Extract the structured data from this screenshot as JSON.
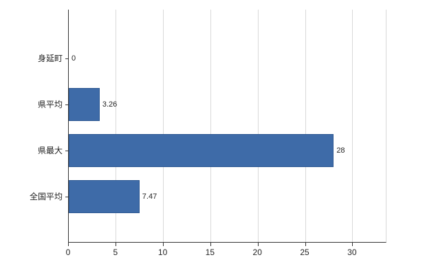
{
  "chart_data": {
    "type": "bar",
    "orientation": "horizontal",
    "title": "",
    "xlabel": "",
    "ylabel": "",
    "categories": [
      "身延町",
      "県平均",
      "県最大",
      "全国平均"
    ],
    "values": [
      0,
      3.26,
      28,
      7.47
    ],
    "value_labels": [
      "0",
      "3.26",
      "28",
      "7.47"
    ],
    "xlim": [
      0,
      33.5
    ],
    "xticks": [
      0,
      5,
      10,
      15,
      20,
      25,
      30
    ],
    "grid": true,
    "legend": false,
    "colors": {
      "bar": "#3e6ba8",
      "bar_border": "#2c5791",
      "gridline": "#d9d9d9",
      "axis": "#333333",
      "text": "#222222",
      "background": "#ffffff"
    }
  }
}
